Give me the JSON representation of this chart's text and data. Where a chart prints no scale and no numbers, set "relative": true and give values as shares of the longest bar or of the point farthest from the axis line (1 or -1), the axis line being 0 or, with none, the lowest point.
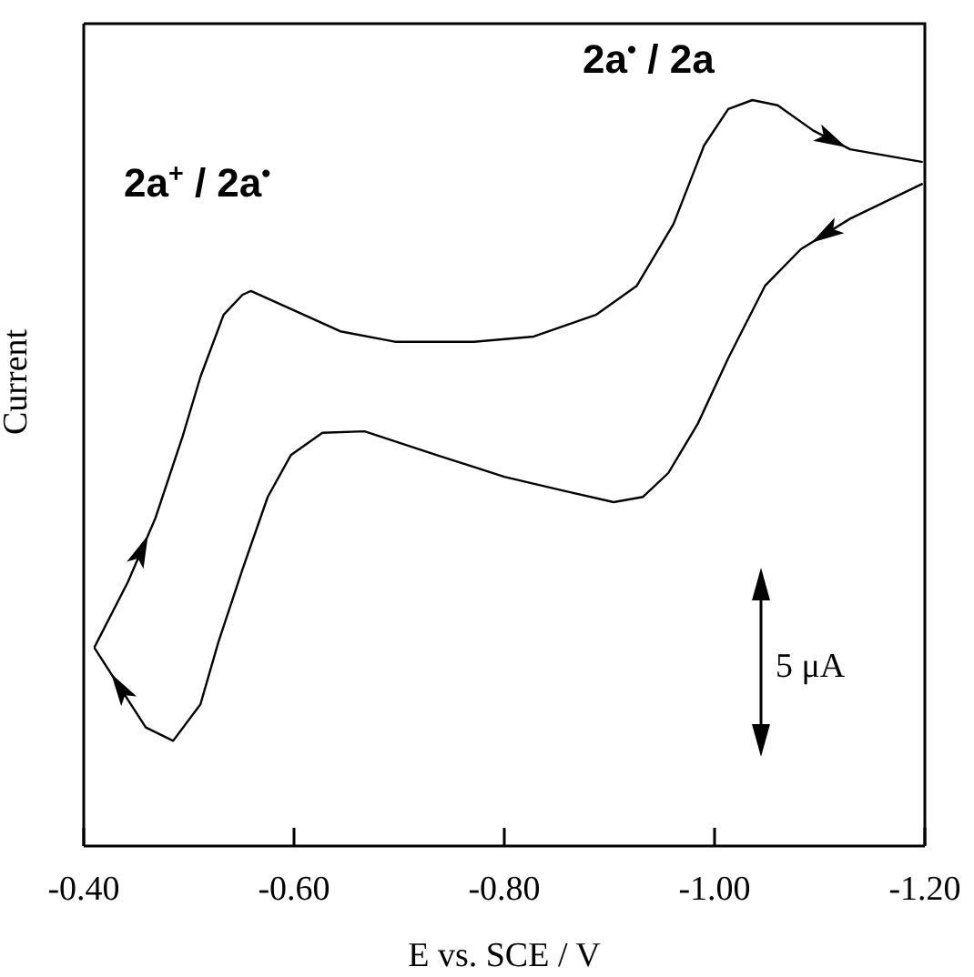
{
  "chart_data": {
    "type": "line",
    "relative": true,
    "xlabel": "E vs. SCE / V",
    "ylabel": "Current",
    "xlim": [
      -0.4,
      -1.2
    ],
    "xticks": [
      {
        "value": -0.4,
        "label": "-0.40"
      },
      {
        "value": -0.6,
        "label": "-0.60"
      },
      {
        "value": -0.8,
        "label": "-0.80"
      },
      {
        "value": -1.0,
        "label": "-1.00"
      },
      {
        "value": -1.2,
        "label": "-1.20"
      }
    ],
    "annotations": [
      "2a$^{+}$ / 2a$^{•}$",
      "2a$^{•}$ / 2a",
      "5 μA"
    ],
    "series": [
      {
        "color": "#000000",
        "x": [
          -0.41,
          -0.442,
          -0.468,
          -0.494,
          -0.511,
          -0.533,
          -0.551,
          -0.559,
          -0.597,
          -0.644,
          -0.696,
          -0.771,
          -0.828,
          -0.887,
          -0.926,
          -0.961,
          -0.99,
          -1.013,
          -1.036,
          -1.06,
          -1.094,
          -1.129,
          -1.198
        ],
        "values": [
          0.266,
          0.354,
          0.439,
          0.549,
          0.629,
          0.712,
          0.739,
          0.744,
          0.72,
          0.69,
          0.676,
          0.676,
          0.683,
          0.712,
          0.751,
          0.834,
          0.939,
          0.988,
          1,
          0.993,
          0.959,
          0.934,
          0.917
        ]
      },
      {
        "color": "#000000",
        "x": [
          -1.198,
          -1.129,
          -1.082,
          -1.048,
          -1.013,
          -0.984,
          -0.956,
          -0.932,
          -0.904,
          -0.857,
          -0.8,
          -0.736,
          -0.667,
          -0.627,
          -0.597,
          -0.575,
          -0.551,
          -0.528,
          -0.511,
          -0.485,
          -0.459,
          -0.41
        ],
        "values": [
          0.888,
          0.841,
          0.8,
          0.751,
          0.654,
          0.566,
          0.5,
          0.468,
          0.461,
          0.476,
          0.495,
          0.524,
          0.556,
          0.554,
          0.524,
          0.468,
          0.371,
          0.273,
          0.19,
          0.141,
          0.159,
          0.266
        ]
      }
    ]
  }
}
